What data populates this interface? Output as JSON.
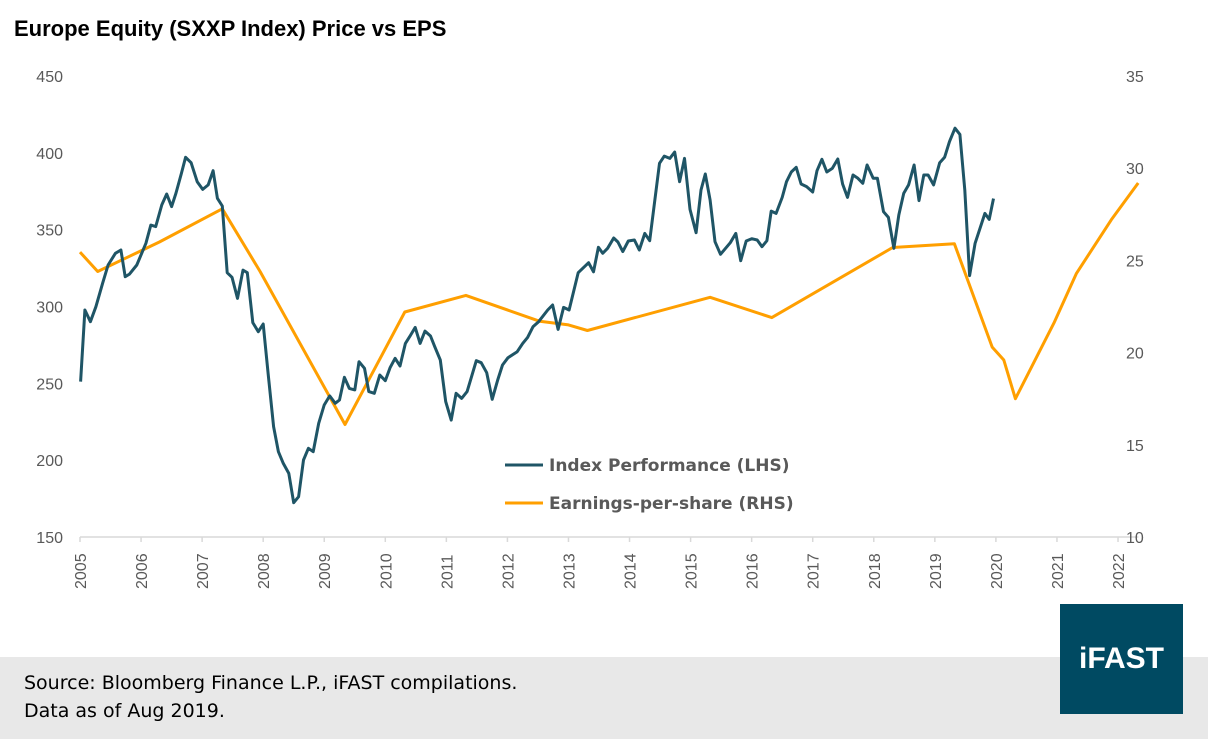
{
  "chart_data": {
    "type": "line",
    "title": "Europe Equity (SXXP Index) Price vs EPS",
    "x_ticks": [
      "2005",
      "2006",
      "2007",
      "2008",
      "2009",
      "2010",
      "2011",
      "2012",
      "2013",
      "2014",
      "2015",
      "2016",
      "2017",
      "2018",
      "2019",
      "2020",
      "2021",
      "2022"
    ],
    "xlim": [
      2005,
      2022.35
    ],
    "y_left": {
      "lim": [
        150,
        450
      ],
      "ticks": [
        "150",
        "200",
        "250",
        "300",
        "350",
        "400",
        "450"
      ]
    },
    "y_right": {
      "lim": [
        10,
        35
      ],
      "ticks": [
        "10",
        "15",
        "20",
        "25",
        "30",
        "35"
      ]
    },
    "legend_position": "center-bottom",
    "grid": false,
    "series": [
      {
        "name": "Index Performance (LHS)",
        "axis": "left",
        "color": "#1f5566",
        "points": [
          [
            2005.01,
            251.1
          ],
          [
            2005.08,
            297.7
          ],
          [
            2005.17,
            290.1
          ],
          [
            2005.26,
            299.9
          ],
          [
            2005.37,
            315.1
          ],
          [
            2005.46,
            327.0
          ],
          [
            2005.58,
            334.6
          ],
          [
            2005.67,
            336.8
          ],
          [
            2005.74,
            319.4
          ],
          [
            2005.81,
            321.1
          ],
          [
            2005.93,
            327.0
          ],
          [
            2006.08,
            341.1
          ],
          [
            2006.16,
            353.0
          ],
          [
            2006.24,
            352.0
          ],
          [
            2006.34,
            366.1
          ],
          [
            2006.42,
            373.2
          ],
          [
            2006.5,
            365.0
          ],
          [
            2006.57,
            373.6
          ],
          [
            2006.66,
            386.6
          ],
          [
            2006.73,
            397.1
          ],
          [
            2006.82,
            393.6
          ],
          [
            2006.92,
            381.2
          ],
          [
            2007.01,
            376.2
          ],
          [
            2007.1,
            379.1
          ],
          [
            2007.18,
            388.4
          ],
          [
            2007.25,
            370.4
          ],
          [
            2007.33,
            365.4
          ],
          [
            2007.41,
            322.0
          ],
          [
            2007.49,
            319.0
          ],
          [
            2007.58,
            305.3
          ],
          [
            2007.67,
            323.7
          ],
          [
            2007.74,
            322.0
          ],
          [
            2007.83,
            289.5
          ],
          [
            2007.92,
            283.6
          ],
          [
            2008.0,
            288.6
          ],
          [
            2008.08,
            256.5
          ],
          [
            2008.17,
            221.8
          ],
          [
            2008.25,
            205.5
          ],
          [
            2008.33,
            197.9
          ],
          [
            2008.42,
            191.4
          ],
          [
            2008.5,
            172.3
          ],
          [
            2008.58,
            176.2
          ],
          [
            2008.66,
            200.1
          ],
          [
            2008.74,
            207.7
          ],
          [
            2008.82,
            205.5
          ],
          [
            2008.91,
            224.0
          ],
          [
            2009.0,
            235.9
          ],
          [
            2009.09,
            241.8
          ],
          [
            2009.18,
            237.0
          ],
          [
            2009.25,
            239.2
          ],
          [
            2009.33,
            253.9
          ],
          [
            2009.41,
            246.7
          ],
          [
            2009.5,
            245.7
          ],
          [
            2009.57,
            264.1
          ],
          [
            2009.66,
            259.8
          ],
          [
            2009.73,
            244.6
          ],
          [
            2009.82,
            243.5
          ],
          [
            2009.91,
            255.4
          ],
          [
            2010.0,
            251.7
          ],
          [
            2010.08,
            260.4
          ],
          [
            2010.16,
            266.3
          ],
          [
            2010.24,
            261.3
          ],
          [
            2010.33,
            276.0
          ],
          [
            2010.4,
            280.4
          ],
          [
            2010.49,
            286.4
          ],
          [
            2010.57,
            276.0
          ],
          [
            2010.65,
            284.0
          ],
          [
            2010.74,
            280.8
          ],
          [
            2010.81,
            273.8
          ],
          [
            2010.9,
            265.2
          ],
          [
            2010.99,
            238.1
          ],
          [
            2011.08,
            226.1
          ],
          [
            2011.16,
            243.5
          ],
          [
            2011.25,
            240.2
          ],
          [
            2011.34,
            244.6
          ],
          [
            2011.49,
            264.7
          ],
          [
            2011.57,
            263.4
          ],
          [
            2011.66,
            256.9
          ],
          [
            2011.75,
            239.6
          ],
          [
            2011.84,
            252.2
          ],
          [
            2011.92,
            261.9
          ],
          [
            2012.01,
            266.7
          ],
          [
            2012.16,
            270.6
          ],
          [
            2012.25,
            276.0
          ],
          [
            2012.33,
            279.9
          ],
          [
            2012.42,
            286.9
          ],
          [
            2012.51,
            290.1
          ],
          [
            2012.66,
            297.7
          ],
          [
            2012.74,
            301.0
          ],
          [
            2012.83,
            285.1
          ],
          [
            2012.92,
            299.4
          ],
          [
            2013.01,
            297.7
          ],
          [
            2013.16,
            322.0
          ],
          [
            2013.33,
            328.5
          ],
          [
            2013.41,
            322.6
          ],
          [
            2013.49,
            338.5
          ],
          [
            2013.56,
            334.6
          ],
          [
            2013.64,
            337.9
          ],
          [
            2013.74,
            344.6
          ],
          [
            2013.81,
            342.0
          ],
          [
            2013.89,
            335.7
          ],
          [
            2013.98,
            342.6
          ],
          [
            2014.08,
            343.3
          ],
          [
            2014.16,
            336.8
          ],
          [
            2014.25,
            347.6
          ],
          [
            2014.33,
            342.8
          ],
          [
            2014.49,
            393.2
          ],
          [
            2014.57,
            397.9
          ],
          [
            2014.66,
            396.4
          ],
          [
            2014.74,
            400.5
          ],
          [
            2014.82,
            381.2
          ],
          [
            2014.9,
            396.4
          ],
          [
            2014.99,
            363.2
          ],
          [
            2015.09,
            348.0
          ],
          [
            2015.17,
            375.8
          ],
          [
            2015.24,
            386.2
          ],
          [
            2015.32,
            369.3
          ],
          [
            2015.4,
            342.2
          ],
          [
            2015.49,
            334.0
          ],
          [
            2015.65,
            341.5
          ],
          [
            2015.74,
            347.6
          ],
          [
            2015.82,
            329.8
          ],
          [
            2015.91,
            342.6
          ],
          [
            2016.0,
            344.1
          ],
          [
            2016.09,
            343.3
          ],
          [
            2016.17,
            338.9
          ],
          [
            2016.25,
            342.8
          ],
          [
            2016.32,
            362.1
          ],
          [
            2016.4,
            360.6
          ],
          [
            2016.5,
            371.0
          ],
          [
            2016.57,
            381.2
          ],
          [
            2016.65,
            387.5
          ],
          [
            2016.73,
            390.6
          ],
          [
            2016.81,
            379.7
          ],
          [
            2016.9,
            378.0
          ],
          [
            2017.0,
            374.5
          ],
          [
            2017.07,
            388.4
          ],
          [
            2017.15,
            395.8
          ],
          [
            2017.23,
            387.5
          ],
          [
            2017.32,
            389.9
          ],
          [
            2017.41,
            396.0
          ],
          [
            2017.49,
            379.7
          ],
          [
            2017.57,
            371.0
          ],
          [
            2017.66,
            385.6
          ],
          [
            2017.74,
            383.4
          ],
          [
            2017.82,
            380.2
          ],
          [
            2017.89,
            392.1
          ],
          [
            2017.99,
            383.4
          ],
          [
            2018.06,
            383.4
          ],
          [
            2018.16,
            361.7
          ],
          [
            2018.24,
            358.0
          ],
          [
            2018.33,
            337.9
          ],
          [
            2018.41,
            359.5
          ],
          [
            2018.49,
            373.6
          ],
          [
            2018.57,
            379.1
          ],
          [
            2018.66,
            392.1
          ],
          [
            2018.74,
            368.9
          ],
          [
            2018.82,
            385.6
          ],
          [
            2018.89,
            385.6
          ],
          [
            2018.98,
            379.1
          ],
          [
            2019.08,
            393.6
          ],
          [
            2019.16,
            397.1
          ],
          [
            2019.24,
            407.3
          ],
          [
            2019.33,
            416.0
          ],
          [
            2019.41,
            412.0
          ],
          [
            2019.49,
            375.8
          ],
          [
            2019.57,
            320.1
          ],
          [
            2019.66,
            341.1
          ],
          [
            2019.82,
            360.6
          ],
          [
            2019.89,
            356.7
          ],
          [
            2019.96,
            370.2
          ]
        ]
      },
      {
        "name": "Earnings-per-share (RHS)",
        "axis": "right",
        "color": "#ff9f00",
        "points": [
          [
            2005.0,
            25.45
          ],
          [
            2005.29,
            24.4
          ],
          [
            2006.3,
            26.0
          ],
          [
            2007.33,
            27.8
          ],
          [
            2007.95,
            24.4
          ],
          [
            2009.34,
            16.1
          ],
          [
            2010.32,
            22.2
          ],
          [
            2011.32,
            23.1
          ],
          [
            2012.53,
            21.7
          ],
          [
            2013.0,
            21.5
          ],
          [
            2013.31,
            21.2
          ],
          [
            2015.32,
            23.0
          ],
          [
            2016.33,
            21.9
          ],
          [
            2018.31,
            25.7
          ],
          [
            2019.32,
            25.9
          ],
          [
            2019.94,
            20.3
          ],
          [
            2020.13,
            19.6
          ],
          [
            2020.32,
            17.5
          ],
          [
            2020.95,
            21.6
          ],
          [
            2021.32,
            24.3
          ],
          [
            2021.89,
            27.2
          ],
          [
            2022.33,
            29.2
          ]
        ]
      }
    ]
  },
  "footer": {
    "source": "Source: Bloomberg Finance L.P., iFAST compilations.",
    "as_of": "Data as of Aug 2019."
  },
  "logo": {
    "text": "iFAST",
    "color": "#004a62"
  }
}
